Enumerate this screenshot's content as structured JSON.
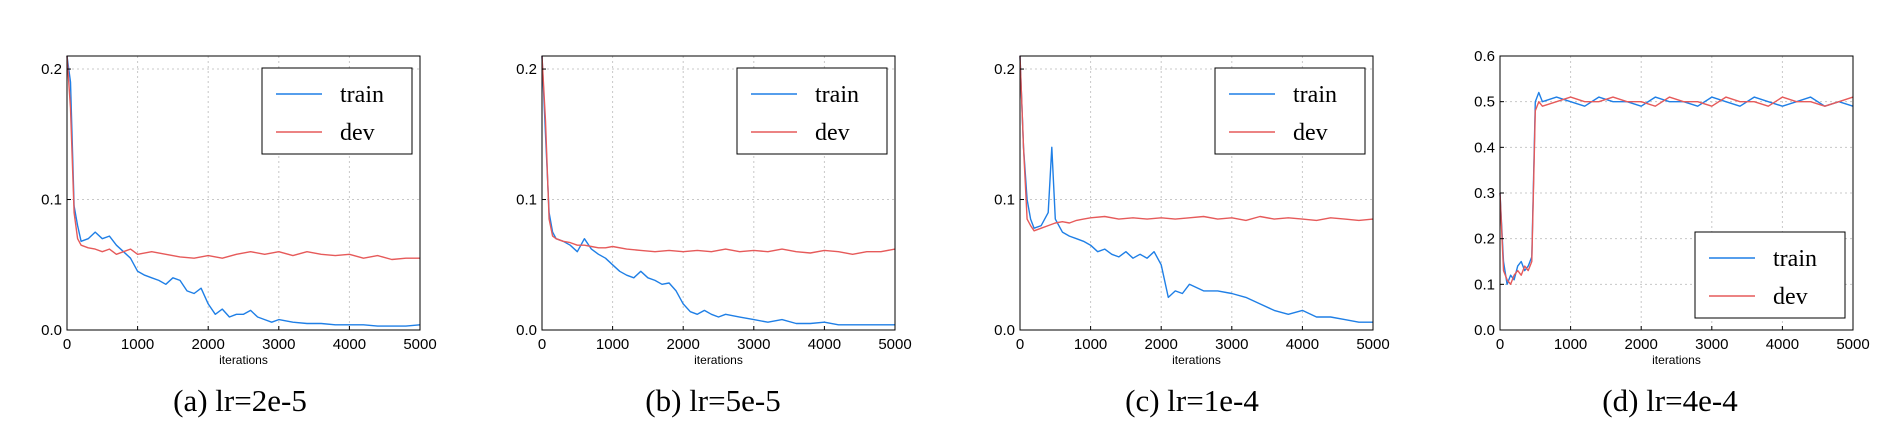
{
  "colors": {
    "train": "#1f7fe6",
    "dev": "#e65a5a",
    "grid": "#c8c8c8"
  },
  "chart_data": [
    {
      "type": "line",
      "caption": "(a) lr=2e-5",
      "xlabel": "iterations",
      "ylabel": "",
      "xlim": [
        0,
        5000
      ],
      "ylim": [
        0,
        0.21
      ],
      "xticks": [
        0,
        1000,
        2000,
        3000,
        4000,
        5000
      ],
      "yticks": [
        0.0,
        0.1,
        0.2
      ],
      "ytick_labels": [
        "0.0",
        "0.1",
        "0.2"
      ],
      "grid": true,
      "legend": "top-right",
      "series": [
        {
          "name": "train",
          "color": "#1f7fe6",
          "x": [
            0,
            50,
            100,
            150,
            200,
            300,
            400,
            500,
            600,
            700,
            800,
            900,
            1000,
            1100,
            1200,
            1300,
            1400,
            1500,
            1600,
            1700,
            1800,
            1900,
            2000,
            2100,
            2200,
            2300,
            2400,
            2500,
            2600,
            2700,
            2800,
            2900,
            3000,
            3200,
            3400,
            3600,
            3800,
            4000,
            4200,
            4400,
            4600,
            4800,
            5000
          ],
          "y": [
            0.21,
            0.19,
            0.095,
            0.08,
            0.068,
            0.07,
            0.075,
            0.07,
            0.072,
            0.065,
            0.06,
            0.055,
            0.045,
            0.042,
            0.04,
            0.038,
            0.035,
            0.04,
            0.038,
            0.03,
            0.028,
            0.032,
            0.02,
            0.012,
            0.016,
            0.01,
            0.012,
            0.012,
            0.015,
            0.01,
            0.008,
            0.006,
            0.008,
            0.006,
            0.005,
            0.005,
            0.004,
            0.004,
            0.004,
            0.003,
            0.003,
            0.003,
            0.004
          ]
        },
        {
          "name": "dev",
          "color": "#e65a5a",
          "x": [
            0,
            50,
            100,
            150,
            200,
            300,
            400,
            500,
            600,
            700,
            800,
            900,
            1000,
            1200,
            1400,
            1600,
            1800,
            2000,
            2200,
            2400,
            2600,
            2800,
            3000,
            3200,
            3400,
            3600,
            3800,
            4000,
            4200,
            4400,
            4600,
            4800,
            5000
          ],
          "y": [
            0.21,
            0.17,
            0.09,
            0.07,
            0.065,
            0.063,
            0.062,
            0.06,
            0.062,
            0.058,
            0.06,
            0.062,
            0.058,
            0.06,
            0.058,
            0.056,
            0.055,
            0.057,
            0.055,
            0.058,
            0.06,
            0.058,
            0.06,
            0.057,
            0.06,
            0.058,
            0.057,
            0.058,
            0.055,
            0.057,
            0.054,
            0.055,
            0.055
          ]
        }
      ]
    },
    {
      "type": "line",
      "caption": "(b) lr=5e-5",
      "xlabel": "iterations",
      "ylabel": "",
      "xlim": [
        0,
        5000
      ],
      "ylim": [
        0,
        0.21
      ],
      "xticks": [
        0,
        1000,
        2000,
        3000,
        4000,
        5000
      ],
      "yticks": [
        0.0,
        0.1,
        0.2
      ],
      "ytick_labels": [
        "0.0",
        "0.1",
        "0.2"
      ],
      "grid": true,
      "legend": "top-right",
      "series": [
        {
          "name": "train",
          "color": "#1f7fe6",
          "x": [
            0,
            50,
            100,
            150,
            200,
            300,
            400,
            500,
            600,
            700,
            800,
            900,
            1000,
            1100,
            1200,
            1300,
            1400,
            1500,
            1600,
            1700,
            1800,
            1900,
            2000,
            2100,
            2200,
            2300,
            2400,
            2500,
            2600,
            2800,
            3000,
            3200,
            3400,
            3600,
            3800,
            4000,
            4200,
            4400,
            4600,
            4800,
            5000
          ],
          "y": [
            0.21,
            0.15,
            0.09,
            0.075,
            0.07,
            0.068,
            0.065,
            0.06,
            0.07,
            0.062,
            0.058,
            0.055,
            0.05,
            0.045,
            0.042,
            0.04,
            0.045,
            0.04,
            0.038,
            0.035,
            0.036,
            0.03,
            0.02,
            0.014,
            0.012,
            0.015,
            0.012,
            0.01,
            0.012,
            0.01,
            0.008,
            0.006,
            0.008,
            0.005,
            0.005,
            0.006,
            0.004,
            0.004,
            0.004,
            0.004,
            0.004
          ]
        },
        {
          "name": "dev",
          "color": "#e65a5a",
          "x": [
            0,
            50,
            100,
            150,
            200,
            300,
            400,
            500,
            600,
            700,
            800,
            900,
            1000,
            1200,
            1400,
            1600,
            1800,
            2000,
            2200,
            2400,
            2600,
            2800,
            3000,
            3200,
            3400,
            3600,
            3800,
            4000,
            4200,
            4400,
            4600,
            4800,
            5000
          ],
          "y": [
            0.21,
            0.16,
            0.085,
            0.072,
            0.07,
            0.068,
            0.067,
            0.065,
            0.065,
            0.064,
            0.063,
            0.063,
            0.064,
            0.062,
            0.061,
            0.06,
            0.061,
            0.06,
            0.061,
            0.06,
            0.062,
            0.06,
            0.061,
            0.06,
            0.062,
            0.06,
            0.059,
            0.061,
            0.06,
            0.058,
            0.06,
            0.06,
            0.062
          ]
        }
      ]
    },
    {
      "type": "line",
      "caption": "(c) lr=1e-4",
      "xlabel": "iterations",
      "ylabel": "",
      "xlim": [
        0,
        5000
      ],
      "ylim": [
        0,
        0.21
      ],
      "xticks": [
        0,
        1000,
        2000,
        3000,
        4000,
        5000
      ],
      "yticks": [
        0.0,
        0.1,
        0.2
      ],
      "ytick_labels": [
        "0.0",
        "0.1",
        "0.2"
      ],
      "grid": true,
      "legend": "top-right",
      "series": [
        {
          "name": "train",
          "color": "#1f7fe6",
          "x": [
            0,
            50,
            100,
            150,
            200,
            300,
            400,
            450,
            500,
            600,
            700,
            800,
            900,
            1000,
            1100,
            1200,
            1300,
            1400,
            1500,
            1600,
            1700,
            1800,
            1900,
            2000,
            2100,
            2200,
            2300,
            2400,
            2600,
            2800,
            3000,
            3200,
            3400,
            3600,
            3800,
            4000,
            4200,
            4400,
            4600,
            4800,
            5000
          ],
          "y": [
            0.21,
            0.14,
            0.1,
            0.085,
            0.078,
            0.08,
            0.09,
            0.14,
            0.085,
            0.075,
            0.072,
            0.07,
            0.068,
            0.065,
            0.06,
            0.062,
            0.058,
            0.056,
            0.06,
            0.055,
            0.058,
            0.055,
            0.06,
            0.05,
            0.025,
            0.03,
            0.028,
            0.035,
            0.03,
            0.03,
            0.028,
            0.025,
            0.02,
            0.015,
            0.012,
            0.015,
            0.01,
            0.01,
            0.008,
            0.006,
            0.006
          ]
        },
        {
          "name": "dev",
          "color": "#e65a5a",
          "x": [
            0,
            50,
            100,
            150,
            200,
            300,
            400,
            500,
            600,
            700,
            800,
            900,
            1000,
            1200,
            1400,
            1600,
            1800,
            2000,
            2200,
            2400,
            2600,
            2800,
            3000,
            3200,
            3400,
            3600,
            3800,
            4000,
            4200,
            4400,
            4600,
            4800,
            5000
          ],
          "y": [
            0.21,
            0.14,
            0.085,
            0.08,
            0.076,
            0.078,
            0.08,
            0.082,
            0.083,
            0.082,
            0.084,
            0.085,
            0.086,
            0.087,
            0.085,
            0.086,
            0.085,
            0.086,
            0.085,
            0.086,
            0.087,
            0.085,
            0.086,
            0.084,
            0.087,
            0.085,
            0.086,
            0.085,
            0.084,
            0.086,
            0.085,
            0.084,
            0.085
          ]
        }
      ]
    },
    {
      "type": "line",
      "caption": "(d) lr=4e-4",
      "xlabel": "iterations",
      "ylabel": "",
      "xlim": [
        0,
        5000
      ],
      "ylim": [
        0,
        0.6
      ],
      "xticks": [
        0,
        1000,
        2000,
        3000,
        4000,
        5000
      ],
      "yticks": [
        0.0,
        0.1,
        0.2,
        0.3,
        0.4,
        0.5,
        0.6
      ],
      "ytick_labels": [
        "0.0",
        "0.1",
        "0.2",
        "0.3",
        "0.4",
        "0.5",
        "0.6"
      ],
      "grid": true,
      "legend": "lower-right",
      "series": [
        {
          "name": "train",
          "color": "#1f7fe6",
          "x": [
            0,
            50,
            100,
            150,
            200,
            250,
            300,
            350,
            400,
            450,
            500,
            550,
            600,
            800,
            1000,
            1200,
            1400,
            1600,
            1800,
            2000,
            2200,
            2400,
            2600,
            2800,
            3000,
            3200,
            3400,
            3600,
            3800,
            4000,
            4200,
            4400,
            4600,
            4800,
            5000
          ],
          "y": [
            0.3,
            0.15,
            0.1,
            0.12,
            0.11,
            0.14,
            0.15,
            0.13,
            0.14,
            0.16,
            0.5,
            0.52,
            0.5,
            0.51,
            0.5,
            0.49,
            0.51,
            0.5,
            0.5,
            0.49,
            0.51,
            0.5,
            0.5,
            0.49,
            0.51,
            0.5,
            0.49,
            0.51,
            0.5,
            0.49,
            0.5,
            0.51,
            0.49,
            0.5,
            0.49
          ]
        },
        {
          "name": "dev",
          "color": "#e65a5a",
          "x": [
            0,
            50,
            100,
            150,
            200,
            250,
            300,
            350,
            400,
            450,
            500,
            550,
            600,
            800,
            1000,
            1200,
            1400,
            1600,
            1800,
            2000,
            2200,
            2400,
            2600,
            2800,
            3000,
            3200,
            3400,
            3600,
            3800,
            4000,
            4200,
            4400,
            4600,
            4800,
            5000
          ],
          "y": [
            0.3,
            0.13,
            0.11,
            0.1,
            0.12,
            0.13,
            0.12,
            0.14,
            0.13,
            0.15,
            0.48,
            0.5,
            0.49,
            0.5,
            0.51,
            0.5,
            0.5,
            0.51,
            0.5,
            0.5,
            0.49,
            0.51,
            0.5,
            0.5,
            0.49,
            0.51,
            0.5,
            0.5,
            0.49,
            0.51,
            0.5,
            0.5,
            0.49,
            0.5,
            0.51
          ]
        }
      ]
    }
  ]
}
